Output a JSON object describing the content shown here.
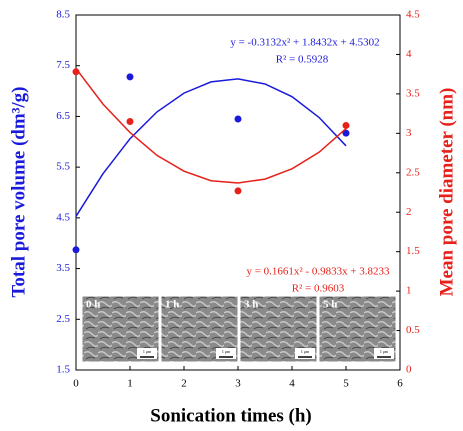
{
  "chart_data": {
    "type": "scatter",
    "xlabel": "Sonication times (h)",
    "ylabel": "Total pore volume (dm³/g)",
    "y2label": "Mean pore diameter (nm)",
    "xlim": [
      0,
      6
    ],
    "xticks": [
      0,
      1,
      2,
      3,
      4,
      5,
      6
    ],
    "ylim": [
      1.5,
      8.5
    ],
    "yticks": [
      1.5,
      2.5,
      3.5,
      4.5,
      5.5,
      6.5,
      7.5,
      8.5
    ],
    "y2lim": [
      0,
      4.5
    ],
    "y2ticks": [
      0,
      0.5,
      1,
      1.5,
      2,
      2.5,
      3,
      3.5,
      4,
      4.5
    ],
    "series": [
      {
        "color": "#1a1adc",
        "x": [
          0,
          1,
          3,
          5
        ],
        "values": [
          3.87,
          7.28,
          6.45,
          6.17
        ],
        "fit_x": [
          0,
          0.5,
          1,
          1.5,
          2,
          2.5,
          3,
          3.5,
          4,
          4.5,
          5
        ],
        "fit_values": [
          4.53,
          5.37,
          6.06,
          6.59,
          6.96,
          7.18,
          7.24,
          7.14,
          6.89,
          6.48,
          5.92
        ],
        "equation": "y = -0.3132x² + 1.8432x + 4.5302",
        "r2": "R² = 0.5928"
      },
      {
        "color": "#e8201a",
        "axis": "y2",
        "x": [
          0,
          1,
          3,
          5
        ],
        "values": [
          3.78,
          3.15,
          2.27,
          3.1
        ],
        "fit_x": [
          0,
          0.5,
          1,
          1.5,
          2,
          2.5,
          3,
          3.5,
          4,
          4.5,
          5
        ],
        "fit_values": [
          3.82,
          3.37,
          3.01,
          2.72,
          2.52,
          2.4,
          2.37,
          2.42,
          2.55,
          2.76,
          3.06
        ],
        "equation": "y = 0.1661x² - 0.9833x + 3.8233",
        "r2": "R² = 0.9603"
      }
    ],
    "insets": [
      {
        "label": "0 h",
        "scale": "1 μm"
      },
      {
        "label": "1 h",
        "scale": "1 μm"
      },
      {
        "label": "3 h",
        "scale": "1 μm"
      },
      {
        "label": "5 h",
        "scale": "1 μm"
      }
    ]
  }
}
